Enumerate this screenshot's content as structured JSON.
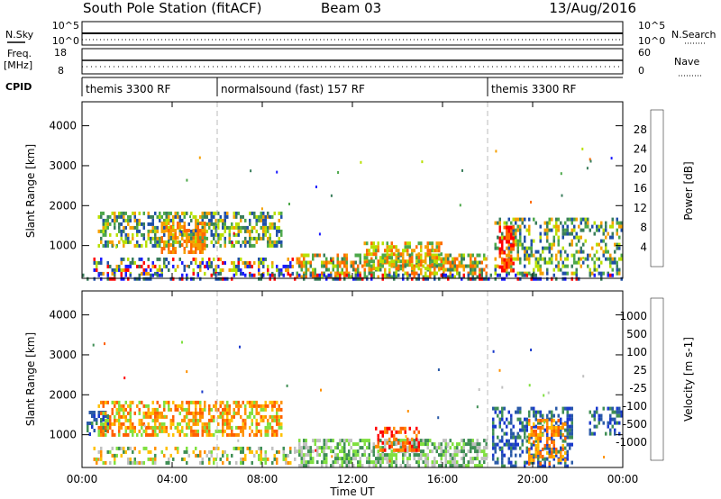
{
  "header": {
    "title": "South Pole Station (fitACF)",
    "beam": "Beam 03",
    "date": "13/Aug/2016"
  },
  "nsky_panel": {
    "left_label": "N.Sky",
    "right_label": "N.Search",
    "left_ticks": [
      "10^5",
      "10^0"
    ],
    "right_ticks": [
      "10^5",
      "10^0"
    ]
  },
  "freq_panel": {
    "left_label_1": "Freq.",
    "left_label_2": "[MHz]",
    "right_label": "Nave",
    "left_ticks": [
      "18",
      "8"
    ],
    "right_ticks": [
      "60",
      "0"
    ]
  },
  "cpid_panel": {
    "label": "CPID",
    "modes": [
      {
        "start_h": 0,
        "end_h": 6,
        "label": "themis 3300 RF"
      },
      {
        "start_h": 6,
        "end_h": 18,
        "label": "normalsound (fast) 157 RF"
      },
      {
        "start_h": 18,
        "end_h": 24,
        "label": "themis 3300 RF"
      }
    ]
  },
  "colors": {
    "power": [
      "#1a1aff",
      "#1f4fa8",
      "#3a7e5c",
      "#4da84a",
      "#b8e000",
      "#f5a000",
      "#ff6a00",
      "#ff0000"
    ],
    "velocity": [
      "#ff0000",
      "#ff6000",
      "#ff9000",
      "#ffc000",
      "#c0c0c0",
      "#80e040",
      "#3f8f55",
      "#2a5aa8",
      "#1a3acc"
    ]
  },
  "chart_data": [
    {
      "type": "heatmap",
      "name": "power",
      "xlabel": "",
      "ylabel": "Slant Range [km]",
      "xlim": [
        0,
        24
      ],
      "ylim": [
        180,
        4600
      ],
      "yticks": [
        "1000",
        "2000",
        "3000",
        "4000"
      ],
      "colorbar_label": "Power [dB]",
      "colorbar_ticks": [
        "4",
        "8",
        "12",
        "16",
        "20",
        "24",
        "28"
      ],
      "regions": [
        {
          "x": [
            0.7,
            8.9
          ],
          "y": [
            950,
            1850
          ],
          "colors": [
            1,
            2,
            3,
            4,
            5
          ],
          "density": 0.55
        },
        {
          "x": [
            3.5,
            5.5
          ],
          "y": [
            800,
            1600
          ],
          "colors": [
            5,
            6
          ],
          "density": 0.5
        },
        {
          "x": [
            0.5,
            9.5
          ],
          "y": [
            250,
            700
          ],
          "colors": [
            0,
            1,
            2,
            4,
            5,
            7
          ],
          "density": 0.4
        },
        {
          "x": [
            9.5,
            18
          ],
          "y": [
            220,
            800
          ],
          "colors": [
            2,
            3,
            4,
            5,
            6
          ],
          "density": 0.6
        },
        {
          "x": [
            12.5,
            16
          ],
          "y": [
            400,
            1100
          ],
          "colors": [
            3,
            4,
            5,
            6
          ],
          "density": 0.55
        },
        {
          "x": [
            18.3,
            24
          ],
          "y": [
            300,
            1700
          ],
          "colors": [
            1,
            2,
            3,
            4,
            5
          ],
          "density": 0.4
        },
        {
          "x": [
            18.5,
            19.2
          ],
          "y": [
            400,
            1500
          ],
          "colors": [
            6,
            7
          ],
          "density": 0.6
        },
        {
          "x": [
            0,
            24
          ],
          "y": [
            190,
            300
          ],
          "colors": [
            0,
            1,
            2,
            7
          ],
          "density": 0.35
        }
      ]
    },
    {
      "type": "heatmap",
      "name": "velocity",
      "xlabel": "Time UT",
      "ylabel": "Slant Range [km]",
      "xlim": [
        0,
        24
      ],
      "ylim": [
        180,
        4600
      ],
      "yticks": [
        "1000",
        "2000",
        "3000",
        "4000"
      ],
      "xticks": [
        "00:00",
        "04:00",
        "08:00",
        "12:00",
        "16:00",
        "20:00",
        "00:00"
      ],
      "colorbar_label": "Velocity [m s-1]",
      "colorbar_ticks": [
        "1000",
        "500",
        "100",
        "25",
        "-25",
        "-100",
        "-500",
        "-1000"
      ],
      "regions": [
        {
          "x": [
            0.2,
            1.2
          ],
          "y": [
            1000,
            1600
          ],
          "colors": [
            6,
            7,
            8
          ],
          "density": 0.6
        },
        {
          "x": [
            0.7,
            8.9
          ],
          "y": [
            950,
            1850
          ],
          "colors": [
            1,
            2,
            3,
            5
          ],
          "density": 0.55
        },
        {
          "x": [
            0.5,
            9.5
          ],
          "y": [
            250,
            700
          ],
          "colors": [
            2,
            3,
            4,
            5,
            6
          ],
          "density": 0.4
        },
        {
          "x": [
            9.5,
            18
          ],
          "y": [
            220,
            900
          ],
          "colors": [
            4,
            5,
            6
          ],
          "density": 0.6
        },
        {
          "x": [
            13,
            15
          ],
          "y": [
            600,
            1200
          ],
          "colors": [
            1,
            2,
            0
          ],
          "density": 0.55
        },
        {
          "x": [
            18.2,
            21.8
          ],
          "y": [
            250,
            1700
          ],
          "colors": [
            6,
            7,
            8
          ],
          "density": 0.45
        },
        {
          "x": [
            19.8,
            21.5
          ],
          "y": [
            300,
            1400
          ],
          "colors": [
            1,
            2,
            3
          ],
          "density": 0.45
        },
        {
          "x": [
            22.5,
            24
          ],
          "y": [
            1000,
            1700
          ],
          "colors": [
            6,
            7,
            8
          ],
          "density": 0.45
        }
      ]
    }
  ]
}
